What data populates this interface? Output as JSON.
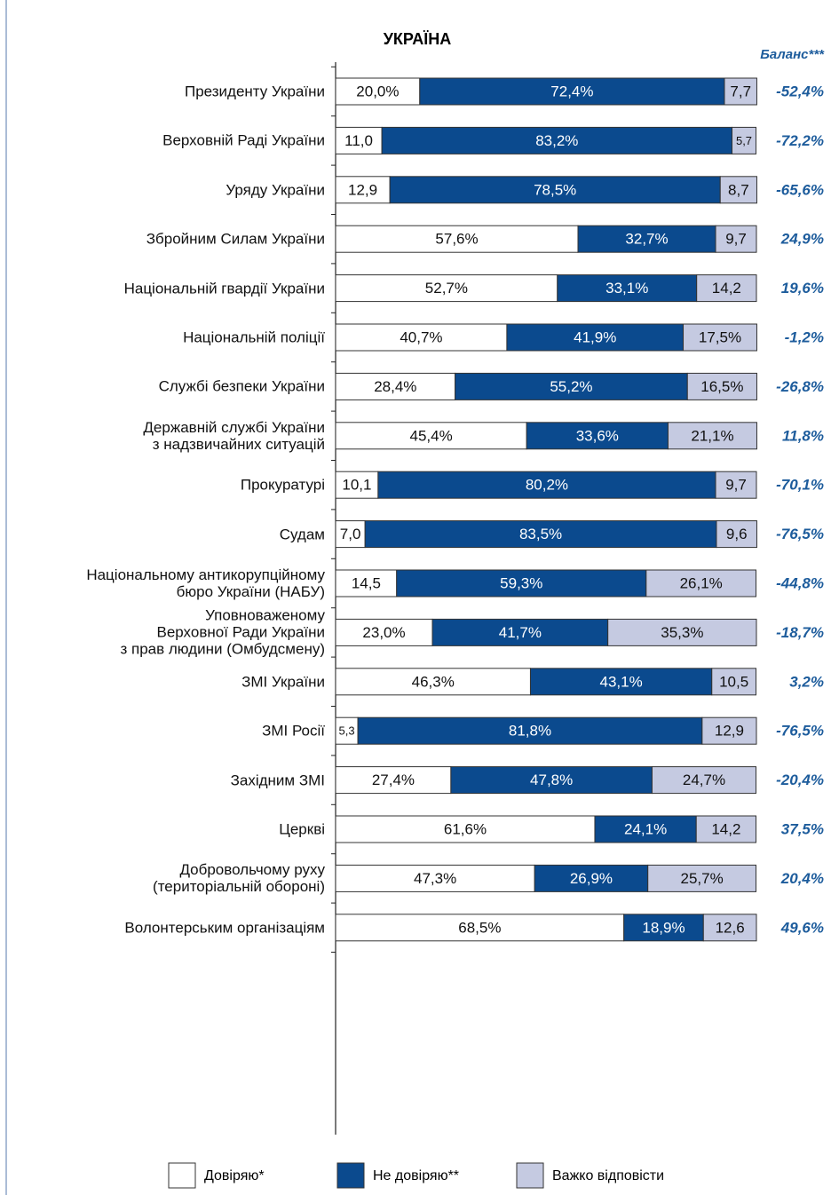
{
  "chart_data": {
    "type": "stacked_barh",
    "title": "УКРАЇНА",
    "categories": [
      "Президенту України",
      "Верховній Раді України",
      "Уряду України",
      "Збройним Силам України",
      "Національній гвардії України",
      "Національній поліції",
      "Службі безпеки України",
      "Державній службі України\nз надзвичайних ситуацій",
      "Прокуратурі",
      "Судам",
      "Національному антикорупційному\nбюро України (НАБУ)",
      "Уповноваженому\nВерховної Ради України\nз прав людини (Омбудсмену)",
      "ЗМІ України",
      "ЗМІ Росії",
      "Західним ЗМІ",
      "Церкві",
      "Добровольчому руху\n(територіальній обороні)",
      "Волонтерським організаціям"
    ],
    "series": [
      {
        "name": "Довіряю*",
        "color": "#ffffff",
        "values": [
          20.0,
          11.0,
          12.9,
          57.6,
          52.7,
          40.7,
          28.4,
          45.4,
          10.1,
          7.0,
          14.5,
          23.0,
          46.3,
          5.3,
          27.4,
          61.6,
          47.3,
          68.5
        ],
        "value_labels": [
          "20,0%",
          "11,0",
          "12,9",
          "57,6%",
          "52,7%",
          "40,7%",
          "28,4%",
          "45,4%",
          "10,1",
          "7,0",
          "14,5",
          "23,0%",
          "46,3%",
          "5,3",
          "27,4%",
          "61,6%",
          "47,3%",
          "68,5%"
        ]
      },
      {
        "name": "Не довіряю**",
        "color": "#0b4a8e",
        "values": [
          72.4,
          83.2,
          78.5,
          32.7,
          33.1,
          41.9,
          55.2,
          33.6,
          80.2,
          83.5,
          59.3,
          41.7,
          43.1,
          81.8,
          47.8,
          24.1,
          26.9,
          18.9
        ],
        "value_labels": [
          "72,4%",
          "83,2%",
          "78,5%",
          "32,7%",
          "33,1%",
          "41,9%",
          "55,2%",
          "33,6%",
          "80,2%",
          "83,5%",
          "59,3%",
          "41,7%",
          "43,1%",
          "81,8%",
          "47,8%",
          "24,1%",
          "26,9%",
          "18,9%"
        ]
      },
      {
        "name": "Важко відповісти",
        "color": "#c5cae1",
        "values": [
          7.7,
          5.7,
          8.7,
          9.7,
          14.2,
          17.5,
          16.5,
          21.1,
          9.7,
          9.6,
          26.1,
          35.3,
          10.5,
          12.9,
          24.7,
          14.2,
          25.7,
          12.6
        ],
        "value_labels": [
          "7,7",
          "5,7",
          "8,7",
          "9,7",
          "14,2",
          "17,5%",
          "16,5%",
          "21,1%",
          "9,7",
          "9,6",
          "26,1%",
          "35,3%",
          "10,5",
          "12,9",
          "24,7%",
          "14,2",
          "25,7%",
          "12,6"
        ]
      }
    ],
    "balance": {
      "name": "Баланс***",
      "color": "#1d5c9c",
      "values": [
        -52.4,
        -72.2,
        -65.6,
        24.9,
        19.6,
        -1.2,
        -26.8,
        11.8,
        -70.1,
        -76.5,
        -44.8,
        -18.7,
        3.2,
        -76.5,
        -20.4,
        37.5,
        20.4,
        49.6
      ],
      "value_labels": [
        "-52,4%",
        "-72,2%",
        "-65,6%",
        "24,9%",
        "19,6%",
        "-1,2%",
        "-26,8%",
        "11,8%",
        "-70,1%",
        "-76,5%",
        "-44,8%",
        "-18,7%",
        "3,2%",
        "-76,5%",
        "-20,4%",
        "37,5%",
        "20,4%",
        "49,6%"
      ]
    },
    "xlim": [
      0,
      100
    ]
  }
}
